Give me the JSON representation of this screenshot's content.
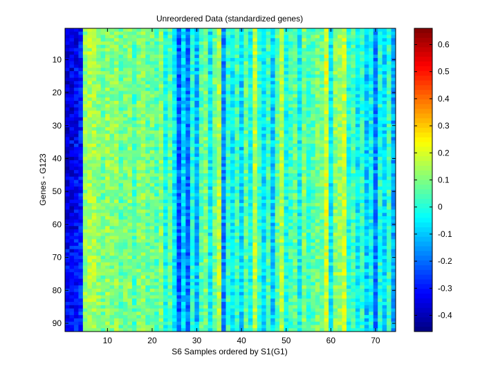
{
  "chart_data": {
    "type": "heatmap",
    "title": "Unreordered Data (standardized genes)",
    "xlabel": "S6 Samples ordered by S1(G1)",
    "ylabel": "Genes - G123",
    "xlim": [
      0.5,
      74.5
    ],
    "ylim": [
      0.5,
      92.5
    ],
    "y_direction": "reversed",
    "x_ticks": [
      10,
      20,
      30,
      40,
      50,
      60,
      70
    ],
    "y_ticks": [
      10,
      20,
      30,
      40,
      50,
      60,
      70,
      80,
      90
    ],
    "n_columns": 74,
    "n_rows": 92,
    "colormap": "jet",
    "clim": [
      -0.46,
      0.66
    ],
    "colorbar_ticks": [
      0.6,
      0.5,
      0.4,
      0.3,
      0.2,
      0.1,
      0,
      -0.1,
      -0.2,
      -0.3,
      -0.4
    ],
    "column_levels": [
      -0.34,
      -0.33,
      -0.31,
      -0.28,
      0.12,
      0.15,
      0.14,
      0.11,
      0.08,
      0.13,
      0.1,
      0.12,
      0.06,
      0.09,
      0.11,
      0.04,
      0.1,
      0.12,
      0.07,
      0.09,
      0.05,
      0.11,
      -0.02,
      0.06,
      -0.05,
      -0.22,
      -0.08,
      -0.2,
      0.0,
      -0.12,
      0.05,
      0.1,
      -0.06,
      0.08,
      0.16,
      -0.17,
      0.02,
      -0.06,
      0.04,
      -0.09,
      0.07,
      -0.03,
      0.17,
      0.01,
      -0.07,
      0.04,
      -0.1,
      0.06,
      0.15,
      -0.02,
      0.03,
      0.08,
      -0.04,
      0.1,
      0.02,
      0.05,
      0.09,
      0.07,
      0.2,
      -0.05,
      0.12,
      0.13,
      0.18,
      -0.01,
      0.04,
      -0.06,
      0.02,
      -0.1,
      -0.03,
      -0.18,
      0.0,
      -0.08,
      0.03,
      -0.14
    ],
    "row_variation_note": "values vary per cell around each column level"
  }
}
